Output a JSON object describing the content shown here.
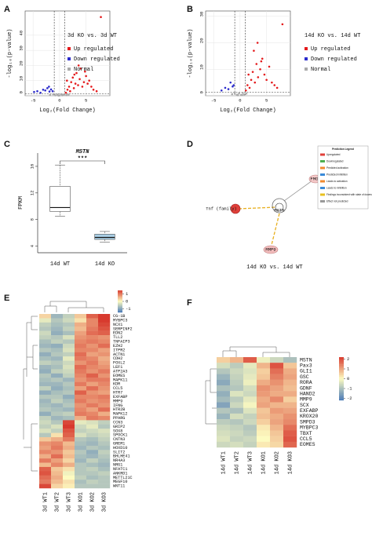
{
  "chart_data": [
    {
      "type": "volcano",
      "panel_label": "A",
      "legend_title": "3d KO vs. 3d WT",
      "xlabel": "Log₂(Fold Change)",
      "ylabel": "-log₁₀(p-value)",
      "xlim": [
        -6.5,
        9.5
      ],
      "ylim": [
        0,
        56
      ],
      "xticks": [
        -5,
        0,
        5
      ],
      "yticks": [
        0,
        10,
        20,
        30,
        40
      ],
      "grid": true,
      "thresholds": {
        "x": [
          -1,
          1
        ],
        "y": 1.3
      },
      "series": [
        {
          "name": "Up regulated",
          "color": "#e41a1c",
          "x": [
            1.2,
            1.5,
            1.8,
            2.0,
            2.2,
            2.5,
            2.7,
            3.0,
            3.2,
            3.5,
            3.8,
            4.0,
            4.3,
            4.6,
            5.0,
            5.3,
            5.6,
            6.0,
            6.4,
            7.0,
            1.4,
            2.8,
            3.6,
            4.8,
            7.8
          ],
          "y": [
            2,
            4,
            6,
            3,
            9,
            12,
            5,
            8,
            15,
            7,
            11,
            18,
            6,
            9,
            13,
            8,
            10,
            6,
            4,
            3,
            10,
            14,
            20,
            16,
            52
          ]
        },
        {
          "name": "Down regulated",
          "color": "#2c2ccc",
          "x": [
            -4.8,
            -4.2,
            -3.6,
            -3.1,
            -2.7,
            -2.3,
            -1.9,
            -1.6,
            -1.3,
            -2.0
          ],
          "y": [
            2.5,
            3,
            2,
            4,
            3.5,
            5,
            2.8,
            4.2,
            3,
            6
          ]
        },
        {
          "name": "Normal",
          "color": "#aaaaaa",
          "x": [
            -1.8,
            -1.2,
            -0.8,
            -0.4,
            0,
            0.3,
            0.6,
            0.9,
            1.3,
            1.7,
            -0.2,
            0.5
          ],
          "y": [
            0.5,
            1,
            0.3,
            0.8,
            0.2,
            1.1,
            0.6,
            0.9,
            0.4,
            0.7,
            0.1,
            0.3
          ]
        }
      ]
    },
    {
      "type": "volcano",
      "panel_label": "B",
      "legend_title": "14d KO vs. 14d WT",
      "xlabel": "Log₂(Fold Change)",
      "ylabel": "-log₁₀(p-value)",
      "xlim": [
        -6.5,
        9.5
      ],
      "ylim": [
        0,
        32
      ],
      "xticks": [
        -5,
        0,
        5
      ],
      "yticks": [
        0,
        10,
        20,
        30
      ],
      "grid": true,
      "thresholds": {
        "x": [
          -1,
          1
        ],
        "y": 1.3
      },
      "series": [
        {
          "name": "Up regulated",
          "color": "#e41a1c",
          "x": [
            1.1,
            1.4,
            1.8,
            2.1,
            2.4,
            2.8,
            3.1,
            3.4,
            3.8,
            4.2,
            4.6,
            5.0,
            5.5,
            6.0,
            6.5,
            7.0,
            2.6,
            3.3,
            1.6,
            4.0,
            8.0
          ],
          "y": [
            2,
            4,
            3,
            6,
            9,
            5,
            12,
            7,
            10,
            14,
            8,
            6,
            11,
            5,
            4,
            3,
            17,
            20,
            8,
            13,
            27
          ]
        },
        {
          "name": "Down regulated",
          "color": "#2c2ccc",
          "x": [
            -3.5,
            -2.8,
            -2.2,
            -1.8,
            -1.4,
            -1.2
          ],
          "y": [
            2,
            3,
            2.5,
            5,
            3.5,
            4
          ]
        },
        {
          "name": "Normal",
          "color": "#aaaaaa",
          "x": [
            -1.5,
            -1.0,
            -0.6,
            -0.2,
            0.2,
            0.5,
            0.8,
            1.2,
            -0.4,
            0.4
          ],
          "y": [
            0.6,
            1.0,
            0.4,
            0.9,
            0.3,
            1.1,
            0.5,
            0.8,
            0.2,
            0.3
          ]
        }
      ]
    },
    {
      "type": "box",
      "panel_label": "C",
      "title": "MSTN",
      "significance": "***",
      "ylabel": "FPKM",
      "categories": [
        "14d WT",
        "14d KO"
      ],
      "boxes": [
        {
          "min": 8.5,
          "q1": 9.2,
          "median": 9.8,
          "q3": 13.0,
          "max": 16.2
        },
        {
          "min": 4.6,
          "q1": 5.0,
          "median": 5.3,
          "q3": 5.8,
          "max": 6.2
        }
      ],
      "colors": [
        "#ffffff",
        "#a9cfe6"
      ],
      "ylim": [
        3,
        18
      ],
      "yticks": [
        4,
        8,
        12,
        16
      ]
    },
    {
      "type": "heatmap",
      "panel_label": "E",
      "columns": [
        "3d WT1",
        "3d WT2",
        "3d WT3",
        "3d KO1",
        "3d KO2",
        "3d KO3"
      ],
      "rows": [
        "CG-1B",
        "MYBPC3",
        "NCX1",
        "SERPINF2",
        "EDN2",
        "TLL2",
        "TNFAIP3",
        "EZH2",
        "ITPR2",
        "ACTN1",
        "CDH2",
        "FOXL2",
        "LEF1",
        "ATP2A3",
        "EOMES",
        "MAPK11",
        "KDR",
        "CCL5",
        "HTR7",
        "EXFABP",
        "MMP9",
        "IFNG",
        "HTR2B",
        "MAPK12",
        "PPARG",
        "CCN3",
        "GRIP2",
        "SOX8",
        "SPOCK1",
        "CNTN3",
        "GREM1",
        "HOXD10",
        "SLIT2",
        "BHLHE41",
        "NR4A3",
        "NRG1",
        "NFATC1",
        "ANKRD1",
        "METTL21C",
        "MEGF10",
        "WNT11"
      ],
      "values": [
        [
          0.3,
          -0.8,
          -0.5,
          0.4,
          1.2,
          1.6
        ],
        [
          -0.2,
          -0.6,
          -0.4,
          0.2,
          0.9,
          1.5
        ],
        [
          -0.5,
          -0.7,
          -0.6,
          0.6,
          0.9,
          1.4
        ],
        [
          -0.6,
          -0.8,
          -0.5,
          0.5,
          1.0,
          1.3
        ],
        [
          -0.4,
          -0.9,
          -0.7,
          0.7,
          1.1,
          1.2
        ],
        [
          -0.5,
          -0.6,
          -0.3,
          0.8,
          0.9,
          0.8
        ],
        [
          -0.7,
          -0.5,
          -0.6,
          0.9,
          1.0,
          0.9
        ],
        [
          -0.8,
          -0.9,
          -0.4,
          1.0,
          0.8,
          1.1
        ],
        [
          -0.6,
          -0.7,
          -0.3,
          0.9,
          0.9,
          0.7
        ],
        [
          -0.9,
          -0.6,
          -0.5,
          1.1,
          0.7,
          0.8
        ],
        [
          -0.7,
          -0.8,
          -0.2,
          1.0,
          0.9,
          0.6
        ],
        [
          -0.5,
          -0.6,
          -0.4,
          0.8,
          1.0,
          0.7
        ],
        [
          -0.8,
          -0.7,
          -0.3,
          1.1,
          0.9,
          0.8
        ],
        [
          -0.9,
          -0.5,
          -0.4,
          1.0,
          0.8,
          1.0
        ],
        [
          -0.6,
          -0.9,
          -0.5,
          0.9,
          1.2,
          0.8
        ],
        [
          -0.7,
          -0.6,
          -0.8,
          0.8,
          1.0,
          1.0
        ],
        [
          -0.8,
          -0.8,
          -0.6,
          1.0,
          0.7,
          0.9
        ],
        [
          -0.5,
          -0.9,
          -0.7,
          0.7,
          1.1,
          0.8
        ],
        [
          -0.9,
          -0.7,
          -0.6,
          1.2,
          0.8,
          0.7
        ],
        [
          -0.6,
          -0.6,
          -0.9,
          0.9,
          0.9,
          1.0
        ],
        [
          -0.8,
          -0.5,
          -0.7,
          1.0,
          0.8,
          0.9
        ],
        [
          -0.7,
          -0.8,
          -0.6,
          0.8,
          1.0,
          0.8
        ],
        [
          -0.6,
          -0.7,
          -0.8,
          0.9,
          0.7,
          1.1
        ],
        [
          -0.9,
          -0.6,
          -0.5,
          1.0,
          0.9,
          0.6
        ],
        [
          -0.5,
          -0.8,
          -0.7,
          0.6,
          1.0,
          0.9
        ],
        [
          -0.4,
          -0.6,
          1.4,
          -0.2,
          -0.3,
          -0.5
        ],
        [
          -0.5,
          -0.3,
          1.5,
          -0.4,
          -0.2,
          -0.6
        ],
        [
          -0.3,
          -0.5,
          1.3,
          -0.5,
          -0.4,
          -0.3
        ],
        [
          -0.6,
          0.2,
          1.2,
          -0.3,
          -0.5,
          -0.4
        ],
        [
          0.4,
          0.6,
          1.0,
          -0.6,
          -0.7,
          -0.5
        ],
        [
          0.8,
          0.9,
          0.5,
          -0.7,
          -0.8,
          -0.6
        ],
        [
          0.7,
          1.0,
          0.6,
          -0.8,
          -0.6,
          -0.7
        ],
        [
          0.9,
          0.8,
          0.4,
          -0.6,
          -0.9,
          -0.5
        ],
        [
          0.6,
          1.1,
          0.5,
          -0.7,
          -0.8,
          -0.6
        ],
        [
          1.0,
          0.7,
          0.3,
          -0.8,
          -0.5,
          -0.7
        ],
        [
          0.5,
          0.9,
          0.6,
          -0.6,
          -0.7,
          -0.8
        ],
        [
          1.2,
          0.4,
          0.2,
          -0.6,
          -0.5,
          -0.7
        ],
        [
          1.3,
          0.5,
          -0.1,
          -0.6,
          -0.6,
          -0.5
        ],
        [
          1.1,
          0.6,
          0.0,
          -0.5,
          -0.7,
          -0.6
        ],
        [
          1.0,
          0.5,
          0.2,
          -0.7,
          -0.5,
          -0.6
        ],
        [
          1.4,
          0.3,
          0.1,
          -0.6,
          -0.6,
          -0.6
        ]
      ],
      "zlim": [
        -1.5,
        1.5
      ],
      "ticks": [
        1,
        0,
        -1
      ],
      "colors": [
        "#4a7ab8",
        "#fdfbc0",
        "#d83a2e"
      ]
    },
    {
      "type": "heatmap",
      "panel_label": "F",
      "columns": [
        "14d WT1",
        "14d WT2",
        "14d WT3",
        "14d KO1",
        "14d KO2",
        "14d KO3"
      ],
      "rows": [
        "MSTN",
        "Pax3",
        "GLI1",
        "GSC",
        "RORA",
        "GDNF",
        "HAND2",
        "MMP9",
        "SCX",
        "EXFABP",
        "KROX20",
        "SMPD3",
        "MYBPC3",
        "TBXT",
        "CCL5",
        "EOMES"
      ],
      "values": [
        [
          0.5,
          0.8,
          1.8,
          -0.2,
          -0.6,
          -1.0
        ],
        [
          -0.5,
          -0.8,
          -0.3,
          0.8,
          1.9,
          0.6
        ],
        [
          -0.9,
          -0.6,
          -0.4,
          0.5,
          1.6,
          0.9
        ],
        [
          -1.2,
          -0.7,
          -0.3,
          0.6,
          1.4,
          1.0
        ],
        [
          -1.4,
          -0.8,
          -0.2,
          0.9,
          1.2,
          0.8
        ],
        [
          -1.0,
          -0.9,
          -0.5,
          1.2,
          1.0,
          0.7
        ],
        [
          -1.3,
          -0.4,
          -0.6,
          1.1,
          0.9,
          0.9
        ],
        [
          -1.1,
          -0.8,
          -0.3,
          0.9,
          1.3,
          0.5
        ],
        [
          -1.5,
          -0.6,
          -0.1,
          1.0,
          0.8,
          0.8
        ],
        [
          -0.9,
          -1.0,
          -0.4,
          0.6,
          1.1,
          1.0
        ],
        [
          -1.2,
          -0.5,
          -0.7,
          0.7,
          0.9,
          1.2
        ],
        [
          -0.8,
          -0.9,
          -0.6,
          0.5,
          1.0,
          1.3
        ],
        [
          -0.6,
          -0.7,
          -0.9,
          0.2,
          0.8,
          1.6
        ],
        [
          -0.5,
          -0.6,
          -0.8,
          0.1,
          0.6,
          1.8
        ],
        [
          -0.4,
          -0.7,
          -0.6,
          0.0,
          0.5,
          1.9
        ],
        [
          -0.6,
          -0.5,
          -0.7,
          0.2,
          0.4,
          1.7
        ]
      ],
      "zlim": [
        -2.2,
        2.2
      ],
      "ticks": [
        2,
        1,
        0,
        -1,
        -2
      ],
      "colors": [
        "#4a7ab8",
        "#fdfbc0",
        "#d83a2e"
      ]
    }
  ],
  "diagram": {
    "panel_label": "D",
    "title": "14d KO vs. 14d WT",
    "nodes": [
      {
        "label": "Tnf (family)"
      },
      {
        "label": "MSTN"
      },
      {
        "label": "FMOD"
      },
      {
        "label": "MMP9"
      }
    ],
    "legend": {
      "title": "Prediction Legend",
      "items": [
        "Upregulated",
        "Downregulated",
        "Predicted activation",
        "Predicted inhibition",
        "Leads to activation",
        "Leads to inhibition",
        "Findings inconsistent with state of downstream molecule",
        "Effect not predicted"
      ]
    }
  }
}
